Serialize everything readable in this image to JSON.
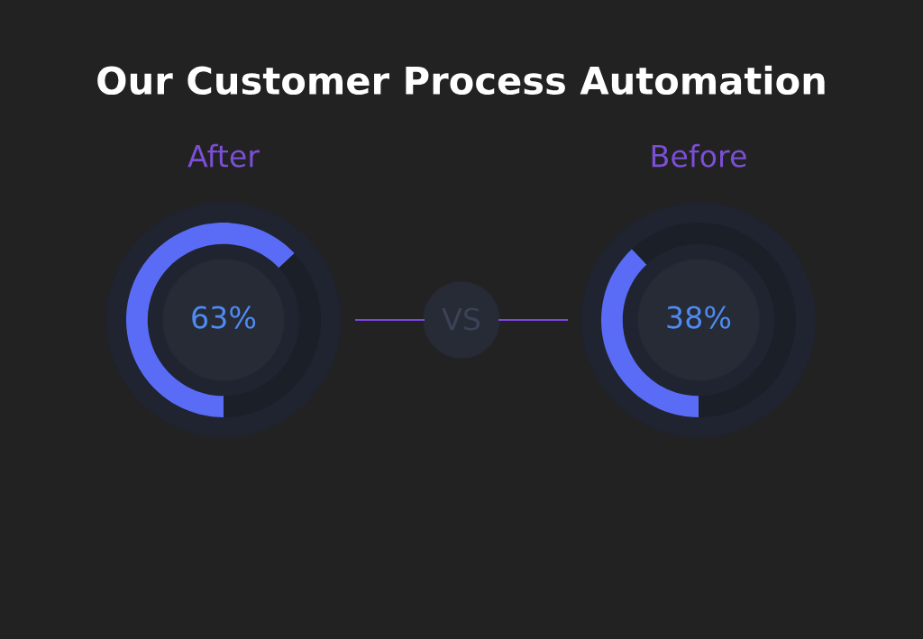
{
  "chart_data": [
    {
      "type": "other",
      "title": "Our Customer Process Automation",
      "annotations": [
        "VS"
      ]
    },
    {
      "type": "donut",
      "title": "After",
      "categories": [
        null,
        null
      ],
      "values": [
        63,
        37
      ],
      "colors": [
        "#5a6cf6",
        "#1b1f27"
      ],
      "annotations": [
        "63%"
      ]
    },
    {
      "type": "donut",
      "title": "Before",
      "categories": [
        null,
        null
      ],
      "values": [
        38,
        62
      ],
      "colors": [
        "#5a6cf6",
        "#1b1f27"
      ],
      "annotations": [
        "38%"
      ]
    }
  ]
}
